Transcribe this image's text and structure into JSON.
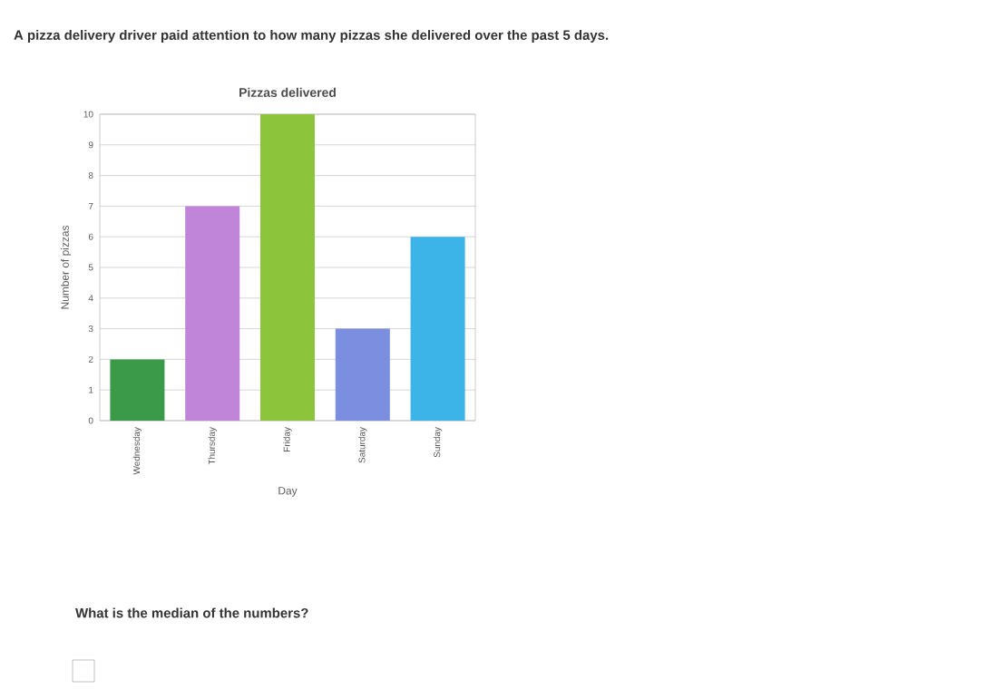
{
  "chart_data": {
    "type": "bar",
    "title": "Pizzas delivered",
    "xlabel": "Day",
    "ylabel": "Number of pizzas",
    "categories": [
      "Wednesday",
      "Thursday",
      "Friday",
      "Saturday",
      "Sunday"
    ],
    "values": [
      2,
      7,
      10,
      3,
      6
    ],
    "colors": [
      "#3a9a4a",
      "#c084d8",
      "#8cc43c",
      "#7b8ee0",
      "#3db4e8"
    ],
    "ylim": [
      0,
      10
    ],
    "yticks": [
      0,
      1,
      2,
      3,
      4,
      5,
      6,
      7,
      8,
      9,
      10
    ],
    "grid": "y",
    "annotations": [
      "A pizza delivery driver paid attention to how many pizzas she delivered over the past 5 days.",
      "What is the median of the numbers?"
    ]
  }
}
